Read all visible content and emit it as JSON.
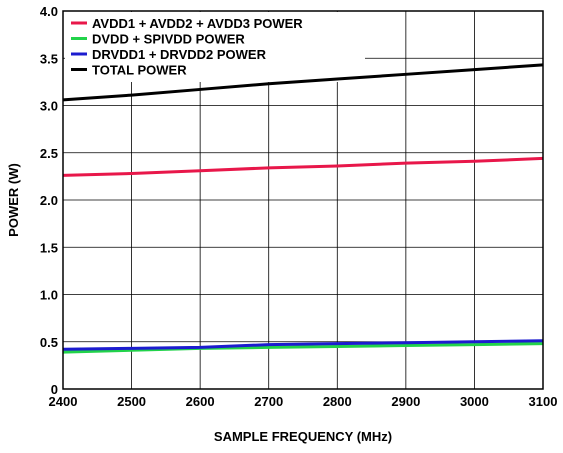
{
  "chart_data": {
    "type": "line",
    "title": "",
    "xlabel": "SAMPLE FREQUENCY (MHz)",
    "ylabel": "POWER (W)",
    "xlim": [
      2400,
      3100
    ],
    "ylim": [
      0,
      4.0
    ],
    "x_ticks": [
      "2400",
      "2500",
      "2600",
      "2700",
      "2800",
      "2900",
      "3000",
      "3100"
    ],
    "y_ticks": [
      "0",
      "0.5",
      "1.0",
      "1.5",
      "2.0",
      "2.5",
      "3.0",
      "3.5",
      "4.0"
    ],
    "grid": true,
    "legend_position": "top-left",
    "x": [
      2400,
      2500,
      2600,
      2700,
      2800,
      2900,
      3000,
      3100
    ],
    "series": [
      {
        "name": "AVDD1 + AVDD2 + AVDD3 POWER",
        "color": "#e8174a",
        "values": [
          2.26,
          2.28,
          2.31,
          2.34,
          2.36,
          2.39,
          2.41,
          2.44
        ]
      },
      {
        "name": "DVDD + SPIVDD POWER",
        "color": "#22d34a",
        "values": [
          0.39,
          0.41,
          0.43,
          0.44,
          0.45,
          0.46,
          0.47,
          0.48
        ]
      },
      {
        "name": "DRVDD1 + DRVDD2 POWER",
        "color": "#1c1ccf",
        "values": [
          0.42,
          0.43,
          0.44,
          0.47,
          0.48,
          0.49,
          0.5,
          0.51
        ]
      },
      {
        "name": "TOTAL POWER",
        "color": "#000000",
        "values": [
          3.06,
          3.11,
          3.17,
          3.23,
          3.28,
          3.33,
          3.38,
          3.43
        ]
      }
    ]
  }
}
